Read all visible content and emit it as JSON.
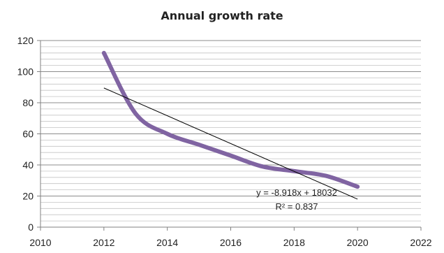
{
  "chart_data": {
    "type": "line",
    "title": "Annual growth rate",
    "xlabel": "",
    "ylabel": "",
    "xlim": [
      2010,
      2022
    ],
    "ylim": [
      0,
      120
    ],
    "x_ticks": [
      "2010",
      "2012",
      "2014",
      "2016",
      "2018",
      "2020",
      "2022"
    ],
    "y_ticks": [
      "0",
      "20",
      "40",
      "60",
      "80",
      "100",
      "120"
    ],
    "grid": true,
    "legend": "none",
    "series": [
      {
        "color": "#8064a2",
        "x": [
          2012,
          2013,
          2014,
          2015,
          2016,
          2017,
          2018,
          2019,
          2020
        ],
        "y": [
          112,
          73,
          60,
          53,
          46,
          39,
          36,
          33,
          26
        ]
      }
    ],
    "trendline": {
      "color": "#000000",
      "x": [
        2012,
        2020
      ],
      "y": [
        89.5,
        18.0
      ],
      "equation": "y = -8.918x + 18032",
      "r_squared": "R² = 0.837"
    }
  }
}
